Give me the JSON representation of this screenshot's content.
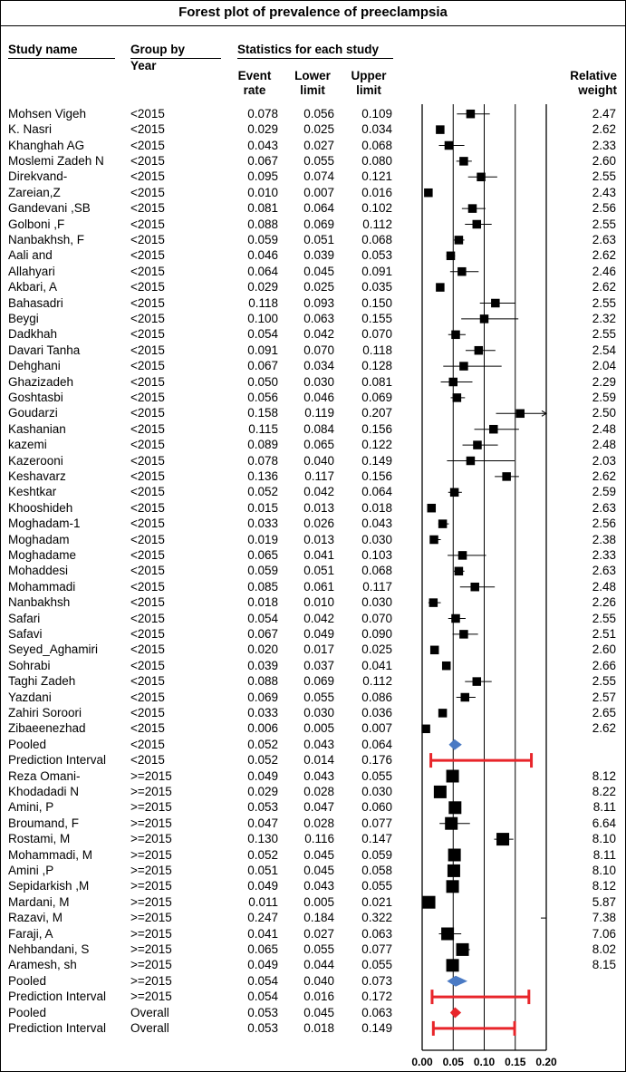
{
  "title": "Forest plot of prevalence of preeclampsia",
  "headers": {
    "study_name": "Study name",
    "group_by": "Group by",
    "group_year": "Year",
    "stats": "Statistics for each study",
    "event_rate": [
      "Event",
      "rate"
    ],
    "lower": [
      "Lower",
      "limit"
    ],
    "upper": [
      "Upper",
      "limit"
    ],
    "weight": [
      "Relative",
      "weight"
    ]
  },
  "chart_data": {
    "type": "forest",
    "title": "Forest plot of prevalence of preeclampsia",
    "xlim": [
      0.0,
      0.2
    ],
    "xticks": [
      "0.00",
      "0.05",
      "0.10",
      "0.15",
      "0.20"
    ],
    "rows": [
      {
        "study": "Mohsen Vigeh",
        "group": "<2015",
        "rate": "0.078",
        "lower": "0.056",
        "upper": "0.109",
        "weight": "2.47",
        "kind": "study"
      },
      {
        "study": "K. Nasri",
        "group": "<2015",
        "rate": "0.029",
        "lower": "0.025",
        "upper": "0.034",
        "weight": "2.62",
        "kind": "study"
      },
      {
        "study": "Khanghah AG",
        "group": "<2015",
        "rate": "0.043",
        "lower": "0.027",
        "upper": "0.068",
        "weight": "2.33",
        "kind": "study"
      },
      {
        "study": "Moslemi Zadeh N",
        "group": "<2015",
        "rate": "0.067",
        "lower": "0.055",
        "upper": "0.080",
        "weight": "2.60",
        "kind": "study"
      },
      {
        "study": "Direkvand-",
        "group": "<2015",
        "rate": "0.095",
        "lower": "0.074",
        "upper": "0.121",
        "weight": "2.55",
        "kind": "study"
      },
      {
        "study": "Zareian,Z",
        "group": "<2015",
        "rate": "0.010",
        "lower": "0.007",
        "upper": "0.016",
        "weight": "2.43",
        "kind": "study"
      },
      {
        "study": "Gandevani ,SB",
        "group": "<2015",
        "rate": "0.081",
        "lower": "0.064",
        "upper": "0.102",
        "weight": "2.56",
        "kind": "study"
      },
      {
        "study": "Golboni ,F",
        "group": "<2015",
        "rate": "0.088",
        "lower": "0.069",
        "upper": "0.112",
        "weight": "2.55",
        "kind": "study"
      },
      {
        "study": "Nanbakhsh, F",
        "group": "<2015",
        "rate": "0.059",
        "lower": "0.051",
        "upper": "0.068",
        "weight": "2.63",
        "kind": "study"
      },
      {
        "study": "Aali and",
        "group": "<2015",
        "rate": "0.046",
        "lower": "0.039",
        "upper": "0.053",
        "weight": "2.62",
        "kind": "study"
      },
      {
        "study": "Allahyari",
        "group": "<2015",
        "rate": "0.064",
        "lower": "0.045",
        "upper": "0.091",
        "weight": "2.46",
        "kind": "study"
      },
      {
        "study": "Akbari, A",
        "group": "<2015",
        "rate": "0.029",
        "lower": "0.025",
        "upper": "0.035",
        "weight": "2.62",
        "kind": "study"
      },
      {
        "study": "Bahasadri",
        "group": "<2015",
        "rate": "0.118",
        "lower": "0.093",
        "upper": "0.150",
        "weight": "2.55",
        "kind": "study"
      },
      {
        "study": "Beygi",
        "group": "<2015",
        "rate": "0.100",
        "lower": "0.063",
        "upper": "0.155",
        "weight": "2.32",
        "kind": "study"
      },
      {
        "study": "Dadkhah",
        "group": "<2015",
        "rate": "0.054",
        "lower": "0.042",
        "upper": "0.070",
        "weight": "2.55",
        "kind": "study"
      },
      {
        "study": "Davari Tanha",
        "group": "<2015",
        "rate": "0.091",
        "lower": "0.070",
        "upper": "0.118",
        "weight": "2.54",
        "kind": "study"
      },
      {
        "study": "Dehghani",
        "group": "<2015",
        "rate": "0.067",
        "lower": "0.034",
        "upper": "0.128",
        "weight": "2.04",
        "kind": "study"
      },
      {
        "study": "Ghazizadeh",
        "group": "<2015",
        "rate": "0.050",
        "lower": "0.030",
        "upper": "0.081",
        "weight": "2.29",
        "kind": "study"
      },
      {
        "study": "Goshtasbi",
        "group": "<2015",
        "rate": "0.056",
        "lower": "0.046",
        "upper": "0.069",
        "weight": "2.59",
        "kind": "study"
      },
      {
        "study": "Goudarzi",
        "group": "<2015",
        "rate": "0.158",
        "lower": "0.119",
        "upper": "0.207",
        "weight": "2.50",
        "kind": "study"
      },
      {
        "study": "Kashanian",
        "group": "<2015",
        "rate": "0.115",
        "lower": "0.084",
        "upper": "0.156",
        "weight": "2.48",
        "kind": "study"
      },
      {
        "study": "kazemi",
        "group": "<2015",
        "rate": "0.089",
        "lower": "0.065",
        "upper": "0.122",
        "weight": "2.48",
        "kind": "study"
      },
      {
        "study": "Kazerooni",
        "group": "<2015",
        "rate": "0.078",
        "lower": "0.040",
        "upper": "0.149",
        "weight": "2.03",
        "kind": "study"
      },
      {
        "study": "Keshavarz",
        "group": "<2015",
        "rate": "0.136",
        "lower": "0.117",
        "upper": "0.156",
        "weight": "2.62",
        "kind": "study"
      },
      {
        "study": "Keshtkar",
        "group": "<2015",
        "rate": "0.052",
        "lower": "0.042",
        "upper": "0.064",
        "weight": "2.59",
        "kind": "study"
      },
      {
        "study": "Khooshideh",
        "group": "<2015",
        "rate": "0.015",
        "lower": "0.013",
        "upper": "0.018",
        "weight": "2.63",
        "kind": "study"
      },
      {
        "study": "Moghadam-1",
        "group": "<2015",
        "rate": "0.033",
        "lower": "0.026",
        "upper": "0.043",
        "weight": "2.56",
        "kind": "study"
      },
      {
        "study": "Moghadam",
        "group": "<2015",
        "rate": "0.019",
        "lower": "0.013",
        "upper": "0.030",
        "weight": "2.38",
        "kind": "study"
      },
      {
        "study": "Moghadame",
        "group": "<2015",
        "rate": "0.065",
        "lower": "0.041",
        "upper": "0.103",
        "weight": "2.33",
        "kind": "study"
      },
      {
        "study": "Mohaddesi",
        "group": "<2015",
        "rate": "0.059",
        "lower": "0.051",
        "upper": "0.068",
        "weight": "2.63",
        "kind": "study"
      },
      {
        "study": "Mohammadi",
        "group": "<2015",
        "rate": "0.085",
        "lower": "0.061",
        "upper": "0.117",
        "weight": "2.48",
        "kind": "study"
      },
      {
        "study": "Nanbakhsh",
        "group": "<2015",
        "rate": "0.018",
        "lower": "0.010",
        "upper": "0.030",
        "weight": "2.26",
        "kind": "study"
      },
      {
        "study": "Safari",
        "group": "<2015",
        "rate": "0.054",
        "lower": "0.042",
        "upper": "0.070",
        "weight": "2.55",
        "kind": "study"
      },
      {
        "study": "Safavi",
        "group": "<2015",
        "rate": "0.067",
        "lower": "0.049",
        "upper": "0.090",
        "weight": "2.51",
        "kind": "study"
      },
      {
        "study": "Seyed_Aghamiri",
        "group": "<2015",
        "rate": "0.020",
        "lower": "0.017",
        "upper": "0.025",
        "weight": "2.60",
        "kind": "study"
      },
      {
        "study": "Sohrabi",
        "group": "<2015",
        "rate": "0.039",
        "lower": "0.037",
        "upper": "0.041",
        "weight": "2.66",
        "kind": "study"
      },
      {
        "study": "Taghi Zadeh",
        "group": "<2015",
        "rate": "0.088",
        "lower": "0.069",
        "upper": "0.112",
        "weight": "2.55",
        "kind": "study"
      },
      {
        "study": "Yazdani",
        "group": "<2015",
        "rate": "0.069",
        "lower": "0.055",
        "upper": "0.086",
        "weight": "2.57",
        "kind": "study"
      },
      {
        "study": "Zahiri Soroori",
        "group": "<2015",
        "rate": "0.033",
        "lower": "0.030",
        "upper": "0.036",
        "weight": "2.65",
        "kind": "study"
      },
      {
        "study": "Zibaeenezhad",
        "group": "<2015",
        "rate": "0.006",
        "lower": "0.005",
        "upper": "0.007",
        "weight": "2.62",
        "kind": "study"
      },
      {
        "study": "Pooled",
        "group": "<2015",
        "rate": "0.052",
        "lower": "0.043",
        "upper": "0.064",
        "weight": "",
        "kind": "pooled",
        "color": "#4a7ac4"
      },
      {
        "study": "Prediction Interval",
        "group": "<2015",
        "rate": "0.052",
        "lower": "0.014",
        "upper": "0.176",
        "weight": "",
        "kind": "pi"
      },
      {
        "study": "Reza Omani-",
        "group": ">=2015",
        "rate": "0.049",
        "lower": "0.043",
        "upper": "0.055",
        "weight": "8.12",
        "kind": "study"
      },
      {
        "study": "Khodadadi N",
        "group": ">=2015",
        "rate": "0.029",
        "lower": "0.028",
        "upper": "0.030",
        "weight": "8.22",
        "kind": "study"
      },
      {
        "study": "Amini, P",
        "group": ">=2015",
        "rate": "0.053",
        "lower": "0.047",
        "upper": "0.060",
        "weight": "8.11",
        "kind": "study"
      },
      {
        "study": "Broumand, F",
        "group": ">=2015",
        "rate": "0.047",
        "lower": "0.028",
        "upper": "0.077",
        "weight": "6.64",
        "kind": "study"
      },
      {
        "study": "Rostami, M",
        "group": ">=2015",
        "rate": "0.130",
        "lower": "0.116",
        "upper": "0.147",
        "weight": "8.10",
        "kind": "study"
      },
      {
        "study": "Mohammadi, M",
        "group": ">=2015",
        "rate": "0.052",
        "lower": "0.045",
        "upper": "0.059",
        "weight": "8.11",
        "kind": "study"
      },
      {
        "study": "Amini ,P",
        "group": ">=2015",
        "rate": "0.051",
        "lower": "0.045",
        "upper": "0.058",
        "weight": "8.10",
        "kind": "study"
      },
      {
        "study": "Sepidarkish ,M",
        "group": ">=2015",
        "rate": "0.049",
        "lower": "0.043",
        "upper": "0.055",
        "weight": "8.12",
        "kind": "study"
      },
      {
        "study": "Mardani, M",
        "group": ">=2015",
        "rate": "0.011",
        "lower": "0.005",
        "upper": "0.021",
        "weight": "5.87",
        "kind": "study"
      },
      {
        "study": "Razavi, M",
        "group": ">=2015",
        "rate": "0.247",
        "lower": "0.184",
        "upper": "0.322",
        "weight": "7.38",
        "kind": "study"
      },
      {
        "study": "Faraji, A",
        "group": ">=2015",
        "rate": "0.041",
        "lower": "0.027",
        "upper": "0.063",
        "weight": "7.06",
        "kind": "study"
      },
      {
        "study": "Nehbandani, S",
        "group": ">=2015",
        "rate": "0.065",
        "lower": "0.055",
        "upper": "0.077",
        "weight": "8.02",
        "kind": "study"
      },
      {
        "study": "Aramesh, sh",
        "group": ">=2015",
        "rate": "0.049",
        "lower": "0.044",
        "upper": "0.055",
        "weight": "8.15",
        "kind": "study"
      },
      {
        "study": "Pooled",
        "group": ">=2015",
        "rate": "0.054",
        "lower": "0.040",
        "upper": "0.073",
        "weight": "",
        "kind": "pooled",
        "color": "#4a7ac4"
      },
      {
        "study": "Prediction Interval",
        "group": ">=2015",
        "rate": "0.054",
        "lower": "0.016",
        "upper": "0.172",
        "weight": "",
        "kind": "pi"
      },
      {
        "study": "Pooled",
        "group": "Overall",
        "rate": "0.053",
        "lower": "0.045",
        "upper": "0.063",
        "weight": "",
        "kind": "pooled",
        "color": "#e8252a"
      },
      {
        "study": "Prediction Interval",
        "group": "Overall",
        "rate": "0.053",
        "lower": "0.018",
        "upper": "0.149",
        "weight": "",
        "kind": "pi"
      }
    ]
  },
  "colors": {
    "pi_bar": "#e8252a",
    "subgroup_pooled": "#4a7ac4",
    "overall_pooled": "#e8252a"
  }
}
